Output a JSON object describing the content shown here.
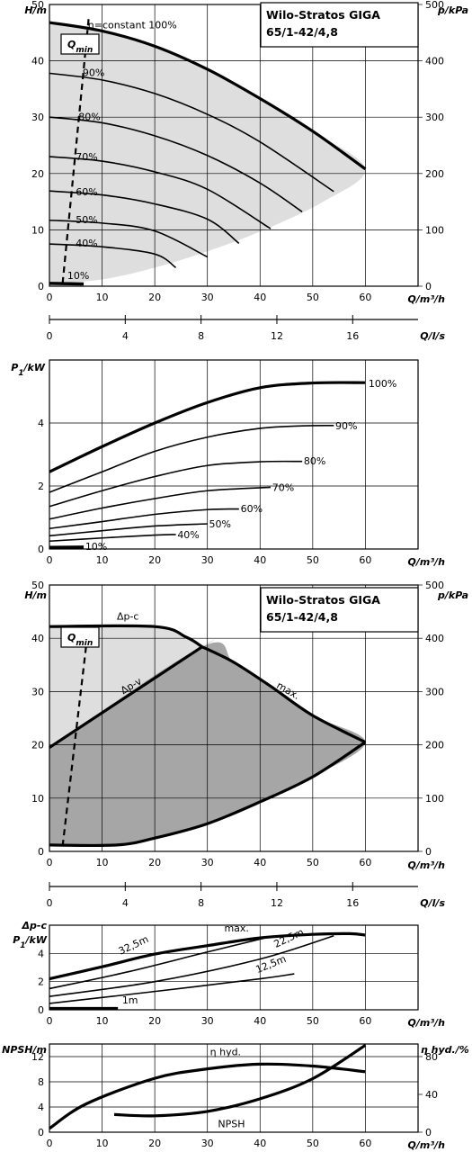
{
  "palette": {
    "line": "#000000",
    "region_light": "#dedede",
    "region_dark": "#a6a6a6",
    "background": "#ffffff"
  },
  "chart_data": [
    {
      "type": "line",
      "title": "Wilo-Stratos GIGA",
      "subtitle": "65/1-42/4,8",
      "xlabel": "Q/m³/h",
      "ylabel": "H/m",
      "y2label": "p/kPa",
      "xlim": [
        0,
        60
      ],
      "ylim": [
        0,
        50
      ],
      "y2lim": [
        0,
        500
      ],
      "xticks": [
        "0",
        "10",
        "20",
        "30",
        "40",
        "50",
        "60"
      ],
      "yticks": [
        "0",
        "10",
        "20",
        "30",
        "40",
        "50"
      ],
      "y2ticks": [
        "0",
        "100",
        "200",
        "300",
        "400",
        "500"
      ],
      "grid": true,
      "qmin_label": "Q",
      "qmin_sub": "min",
      "qmin_line": {
        "x": [
          2.5,
          7.5
        ],
        "y": [
          0.5,
          48
        ]
      },
      "curves": [
        {
          "name": "n=constant 100%",
          "x": [
            0,
            10,
            20,
            30,
            40,
            50,
            60
          ],
          "y": [
            46.8,
            45.3,
            42.6,
            38.5,
            33.3,
            27.5,
            20.8
          ],
          "width": 3.2
        },
        {
          "name": "90%",
          "x": [
            0,
            10,
            20,
            30,
            40,
            54
          ],
          "y": [
            37.8,
            36.6,
            34.2,
            30.5,
            25.6,
            16.8
          ],
          "width": 1.6
        },
        {
          "name": "80%",
          "x": [
            0,
            10,
            20,
            30,
            40,
            48
          ],
          "y": [
            30,
            29,
            26.7,
            23.2,
            18.3,
            13.2
          ],
          "width": 1.6
        },
        {
          "name": "70%",
          "x": [
            0,
            10,
            20,
            30,
            42
          ],
          "y": [
            23,
            22.2,
            20.3,
            17.2,
            10.2
          ],
          "width": 1.6
        },
        {
          "name": "60%",
          "x": [
            0,
            10,
            20,
            30,
            36
          ],
          "y": [
            16.9,
            16.2,
            14.6,
            11.9,
            7.6
          ],
          "width": 1.6
        },
        {
          "name": "50%",
          "x": [
            0,
            10,
            20,
            30
          ],
          "y": [
            11.7,
            11.2,
            9.8,
            5.2
          ],
          "width": 1.6
        },
        {
          "name": "40%",
          "x": [
            0,
            10,
            20,
            24
          ],
          "y": [
            7.5,
            7,
            5.7,
            3.3
          ],
          "width": 1.6
        },
        {
          "name": "10%",
          "x": [
            0,
            6.5
          ],
          "y": [
            0.5,
            0.4
          ],
          "width": 3.5
        }
      ],
      "curve_labels": [
        {
          "text": "n=constant 100%",
          "x": 7.3,
          "y": 45.8
        },
        {
          "text": "90%",
          "x": 6.3,
          "y": 37.3
        },
        {
          "text": "80%",
          "x": 5.5,
          "y": 29.5
        },
        {
          "text": "70%",
          "x": 5,
          "y": 22.4
        },
        {
          "text": "60%",
          "x": 5,
          "y": 16.1
        },
        {
          "text": "50%",
          "x": 5,
          "y": 11.2
        },
        {
          "text": "40%",
          "x": 5,
          "y": 7
        },
        {
          "text": "10%",
          "x": 3.4,
          "y": 1.3
        }
      ],
      "region_light": {
        "x": [
          0,
          10,
          20,
          30,
          40,
          50,
          60,
          52,
          40,
          30,
          20,
          10,
          0
        ],
        "y": [
          46.8,
          45.3,
          42.6,
          38.5,
          33.3,
          27.5,
          20.8,
          15,
          9.7,
          6.2,
          3.3,
          1.2,
          0.5
        ]
      }
    },
    {
      "type": "axis",
      "xlabel": "Q/l/s",
      "xlim": [
        0,
        16.67
      ],
      "ticks": [
        0,
        4,
        8,
        12,
        16
      ],
      "tick_labels": [
        "0",
        "4",
        "8",
        "12",
        "16"
      ]
    },
    {
      "type": "line",
      "xlabel": "Q/m³/h",
      "ylabel": "P₁/kW",
      "xlim": [
        0,
        60
      ],
      "ylim": [
        0,
        6
      ],
      "xticks": [
        "0",
        "10",
        "20",
        "30",
        "40",
        "50",
        "60"
      ],
      "yticks": [
        "0",
        "2",
        "4"
      ],
      "grid": true,
      "curves": [
        {
          "name": "100%",
          "x": [
            0,
            10,
            20,
            30,
            40,
            50,
            60
          ],
          "y": [
            2.45,
            3.25,
            4.0,
            4.65,
            5.12,
            5.27,
            5.28
          ],
          "width": 3.2
        },
        {
          "name": "90%",
          "x": [
            0,
            10,
            20,
            30,
            40,
            48,
            54
          ],
          "y": [
            1.8,
            2.45,
            3.1,
            3.55,
            3.83,
            3.91,
            3.92
          ],
          "width": 1.6
        },
        {
          "name": "80%",
          "x": [
            0,
            10,
            20,
            30,
            40,
            48
          ],
          "y": [
            1.35,
            1.85,
            2.3,
            2.65,
            2.77,
            2.78
          ],
          "width": 1.6
        },
        {
          "name": "70%",
          "x": [
            0,
            10,
            20,
            30,
            42
          ],
          "y": [
            0.95,
            1.3,
            1.6,
            1.85,
            1.96
          ],
          "width": 1.6
        },
        {
          "name": "60%",
          "x": [
            0,
            10,
            20,
            30,
            36
          ],
          "y": [
            0.65,
            0.87,
            1.1,
            1.25,
            1.27
          ],
          "width": 1.6
        },
        {
          "name": "50%",
          "x": [
            0,
            10,
            20,
            30
          ],
          "y": [
            0.42,
            0.58,
            0.73,
            0.8
          ],
          "width": 1.6
        },
        {
          "name": "40%",
          "x": [
            0,
            10,
            20,
            24
          ],
          "y": [
            0.25,
            0.35,
            0.44,
            0.46
          ],
          "width": 1.6
        },
        {
          "name": "10%",
          "x": [
            0,
            6.5
          ],
          "y": [
            0.05,
            0.06
          ],
          "width": 3.5
        }
      ],
      "curve_labels": [
        {
          "text": "100%",
          "x": 60.6,
          "y": 5.15
        },
        {
          "text": "90%",
          "x": 54.3,
          "y": 3.8
        },
        {
          "text": "80%",
          "x": 48.3,
          "y": 2.68
        },
        {
          "text": "70%",
          "x": 42.3,
          "y": 1.85
        },
        {
          "text": "60%",
          "x": 36.3,
          "y": 1.17
        },
        {
          "text": "50%",
          "x": 30.3,
          "y": 0.69
        },
        {
          "text": "40%",
          "x": 24.3,
          "y": 0.35
        },
        {
          "text": "10%",
          "x": 6.8,
          "y": -0.03
        }
      ]
    },
    {
      "type": "area",
      "title": "Wilo-Stratos GIGA",
      "subtitle": "65/1-42/4,8",
      "xlabel": "Q/m³/h",
      "ylabel": "H/m",
      "y2label": "p/kPa",
      "xlim": [
        0,
        60
      ],
      "ylim": [
        0,
        50
      ],
      "y2lim": [
        0,
        500
      ],
      "xticks": [
        "0",
        "10",
        "20",
        "30",
        "40",
        "50",
        "60"
      ],
      "yticks": [
        "0",
        "10",
        "20",
        "30",
        "40",
        "50"
      ],
      "y2ticks": [
        "0",
        "100",
        "200",
        "300",
        "400",
        "500"
      ],
      "grid": true,
      "qmin_label": "Q",
      "qmin_sub": "min",
      "qmin_line": {
        "x": [
          2.5,
          7.5
        ],
        "y": [
          1,
          43
        ]
      },
      "region_light": {
        "x": [
          0,
          20,
          26,
          29,
          29,
          0
        ],
        "y": [
          42.2,
          42.2,
          40.2,
          38.4,
          38.4,
          19.5
        ]
      },
      "region_dark": {
        "x": [
          0,
          29,
          35,
          42,
          50,
          60,
          50,
          40,
          30,
          20,
          12.8,
          0
        ],
        "y": [
          19.5,
          38.4,
          35.5,
          31,
          25.5,
          20.5,
          14,
          9.3,
          5.2,
          2.5,
          1.2,
          1.2
        ]
      },
      "curves": [
        {
          "name": "Δp-c",
          "x": [
            0,
            20,
            26,
            29
          ],
          "y": [
            42.2,
            42.2,
            40.2,
            38.4
          ],
          "width": 3.2
        },
        {
          "name": "Δp-v",
          "x": [
            0,
            29
          ],
          "y": [
            19.5,
            38.4
          ],
          "width": 3.2
        },
        {
          "name": "max.",
          "x": [
            29,
            35,
            42,
            50,
            60
          ],
          "y": [
            38.4,
            35.5,
            31,
            25.5,
            20.5
          ],
          "width": 3.2
        },
        {
          "name": "min",
          "x": [
            0,
            12.8,
            20,
            30,
            40,
            50,
            60
          ],
          "y": [
            1.2,
            1.2,
            2.5,
            5.2,
            9.3,
            14,
            20.5
          ],
          "width": 3.2
        }
      ],
      "curve_labels": [
        {
          "text": "Δp-c",
          "x": 12.8,
          "y": 43.5,
          "rot": 0
        },
        {
          "text": "Δp-v",
          "x": 14,
          "y": 29.5,
          "rot": -30
        },
        {
          "text": "max.",
          "x": 43,
          "y": 30.8,
          "rot": 30
        }
      ]
    },
    {
      "type": "axis",
      "xlabel": "Q/l/s",
      "xlim": [
        0,
        16.67
      ],
      "ticks": [
        0,
        4,
        8,
        12,
        16
      ],
      "tick_labels": [
        "0",
        "4",
        "8",
        "12",
        "16"
      ]
    },
    {
      "type": "line",
      "xlabel": "Q/m³/h",
      "ylabel": "P₁/kW",
      "ylabel_top": "Δp-c",
      "xlim": [
        0,
        60
      ],
      "ylim": [
        0,
        6
      ],
      "xticks": [
        "0",
        "10",
        "20",
        "30",
        "40",
        "50",
        "60"
      ],
      "yticks": [
        "0",
        "2",
        "4"
      ],
      "grid": true,
      "curves": [
        {
          "name": "max.",
          "x": [
            0,
            10,
            20,
            30,
            40,
            50,
            57,
            60
          ],
          "y": [
            2.2,
            3.05,
            3.95,
            4.55,
            5.1,
            5.35,
            5.4,
            5.3
          ],
          "width": 3.2
        },
        {
          "name": "32,5m",
          "x": [
            0,
            15,
            30,
            41
          ],
          "y": [
            1.5,
            2.7,
            4.1,
            5.1
          ],
          "width": 1.6
        },
        {
          "name": "22,5m",
          "x": [
            0,
            20,
            40,
            54
          ],
          "y": [
            0.95,
            2.0,
            3.6,
            5.25
          ],
          "width": 1.6
        },
        {
          "name": "12,5m",
          "x": [
            0,
            20,
            40,
            46.5
          ],
          "y": [
            0.45,
            1.3,
            2.2,
            2.55
          ],
          "width": 1.6
        },
        {
          "name": "1m",
          "x": [
            0,
            13
          ],
          "y": [
            0.1,
            0.1
          ],
          "width": 3.2
        }
      ],
      "curve_labels": [
        {
          "text": "max.",
          "x": 33.2,
          "y": 5.55,
          "rot": 0
        },
        {
          "text": "32,5m",
          "x": 13.5,
          "y": 3.9,
          "rot": -25
        },
        {
          "text": "22,5m",
          "x": 43,
          "y": 4.4,
          "rot": -25
        },
        {
          "text": "12,5m",
          "x": 39.5,
          "y": 2.6,
          "rot": -22
        },
        {
          "text": "1m",
          "x": 13.8,
          "y": 0.45,
          "rot": 0
        }
      ]
    },
    {
      "type": "line",
      "xlabel": "Q/m³/h",
      "ylabel": "NPSH/m",
      "y2label": "η hyd./%",
      "xlim": [
        0,
        60
      ],
      "ylim": [
        0,
        14
      ],
      "y2lim": [
        0,
        93.33
      ],
      "xticks": [
        "0",
        "10",
        "20",
        "30",
        "40",
        "50",
        "60"
      ],
      "yticks": [
        "0",
        "4",
        "8",
        "12"
      ],
      "y2ticks": [
        "0",
        "40",
        "80"
      ],
      "grid": true,
      "curves": [
        {
          "name": "η hyd.",
          "axis": "y2",
          "x": [
            0,
            7,
            20,
            30,
            40,
            50,
            60
          ],
          "y": [
            4,
            30,
            57,
            67,
            72,
            70,
            64
          ],
          "width": 3.2
        },
        {
          "name": "NPSH",
          "axis": "y",
          "x": [
            12.3,
            20,
            30,
            40,
            50,
            60
          ],
          "y": [
            2.8,
            2.6,
            3.3,
            5.3,
            8.5,
            13.8
          ],
          "width": 3.2
        }
      ],
      "curve_labels": [
        {
          "text": "η hyd.",
          "x": 30.5,
          "y": 12.2,
          "rot": 0
        },
        {
          "text": "NPSH",
          "x": 32,
          "y": 0.8,
          "rot": 0
        }
      ]
    }
  ]
}
